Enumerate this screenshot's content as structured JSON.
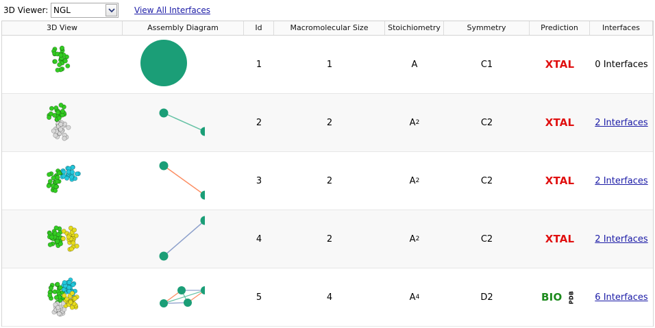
{
  "toolbar": {
    "viewer_label": "3D Viewer:",
    "viewer_value": "NGL",
    "view_all_label": "View All Interfaces"
  },
  "columns": [
    "3D View",
    "Assembly Diagram",
    "Id",
    "Macromolecular Size",
    "Stoichiometry",
    "Symmetry",
    "Prediction",
    "Interfaces"
  ],
  "colors": {
    "node": "#1b9e77",
    "edge_green": "#66c2a5",
    "edge_orange": "#fc8d62",
    "edge_blue": "#8da0cb",
    "chain_green": "#33cc22",
    "chain_white": "#d8d8d8",
    "chain_cyan": "#22c8dd",
    "chain_yellow": "#e6dc1e",
    "xtal": "#e01010",
    "bio": "#1c8a1c"
  },
  "rows": [
    {
      "id": "1",
      "size": "1",
      "stoich_base": "A",
      "stoich_sub": "",
      "symmetry": "C1",
      "prediction": "XTAL",
      "pdb_tag": "",
      "interfaces": "0 Interfaces",
      "interfaces_link": false,
      "structure_icon": "monomer-structure-icon",
      "diagram_icon": "single-node-diagram-icon"
    },
    {
      "id": "2",
      "size": "2",
      "stoich_base": "A",
      "stoich_sub": "2",
      "symmetry": "C2",
      "prediction": "XTAL",
      "pdb_tag": "",
      "interfaces": "2 Interfaces",
      "interfaces_link": true,
      "structure_icon": "dimer-structure-icon",
      "diagram_icon": "two-node-diagram-icon"
    },
    {
      "id": "3",
      "size": "2",
      "stoich_base": "A",
      "stoich_sub": "2",
      "symmetry": "C2",
      "prediction": "XTAL",
      "pdb_tag": "",
      "interfaces": "2 Interfaces",
      "interfaces_link": true,
      "structure_icon": "dimer-structure-icon",
      "diagram_icon": "two-node-diagram-icon"
    },
    {
      "id": "4",
      "size": "2",
      "stoich_base": "A",
      "stoich_sub": "2",
      "symmetry": "C2",
      "prediction": "XTAL",
      "pdb_tag": "",
      "interfaces": "2 Interfaces",
      "interfaces_link": true,
      "structure_icon": "dimer-structure-icon",
      "diagram_icon": "two-node-diagram-icon"
    },
    {
      "id": "5",
      "size": "4",
      "stoich_base": "A",
      "stoich_sub": "4",
      "symmetry": "D2",
      "prediction": "BIO",
      "pdb_tag": "PDB",
      "interfaces": "6 Interfaces",
      "interfaces_link": true,
      "structure_icon": "tetramer-structure-icon",
      "diagram_icon": "four-node-diagram-icon"
    }
  ]
}
